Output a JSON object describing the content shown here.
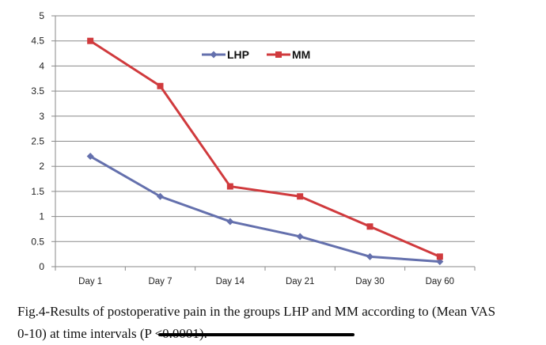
{
  "chart_data": {
    "type": "line",
    "categories": [
      "Day 1",
      "Day 7",
      "Day 14",
      "Day  21",
      "Day 30",
      "Day 60"
    ],
    "series": [
      {
        "name": "LHP",
        "values": [
          2.2,
          1.4,
          0.9,
          0.6,
          0.2,
          0.1
        ],
        "color": "#6470ad",
        "marker": "diamond"
      },
      {
        "name": "MM",
        "values": [
          4.5,
          3.6,
          1.6,
          1.4,
          0.8,
          0.2
        ],
        "color": "#d03a3d",
        "marker": "square"
      }
    ],
    "ylim": [
      0,
      5
    ],
    "yticks": [
      "0",
      "0.5",
      "1",
      "1.5",
      "2",
      "2.5",
      "3",
      "3.5",
      "4",
      "4.5",
      "5"
    ],
    "grid": true,
    "legend": "top-center"
  },
  "caption": {
    "line1": "Fig.4-Results of postoperative pain in  the groups LHP and MM according to (Mean VAS",
    "line2": "0-10) at time intervals (P <0.0001)."
  }
}
